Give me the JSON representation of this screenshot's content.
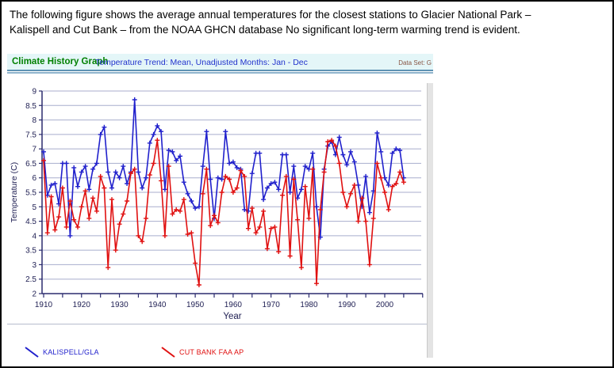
{
  "caption": {
    "line1": "The following figure shows the average annual temperatures for the closest stations to Glacier National Park –",
    "line2": "Kalispell and Cut Bank – from the NOAA GHCN database No significant long-term warming trend is evident."
  },
  "header": {
    "title": "Climate History Graph",
    "subtitle": "Temperature Trend: Mean, Unadjusted Months: Jan - Dec",
    "data_set_label": "Data Set: G"
  },
  "chart_data": {
    "type": "line",
    "title": "",
    "xlabel": "Year",
    "ylabel": "Temperature (C)",
    "xlim": [
      1910,
      2010
    ],
    "ylim": [
      2,
      9
    ],
    "y_tick_step": 0.5,
    "x_tick_labels": [
      1910,
      1920,
      1930,
      1940,
      1950,
      1960,
      1970,
      1980,
      1990,
      2000
    ],
    "x_minor_tick_step": 5,
    "grid": "horizontal",
    "grid_color": "#a8aecd",
    "axis_color": "#2b2b6e",
    "tick_label_color": "#222255",
    "marker": "plus",
    "legend_position": "bottom",
    "x": [
      1910,
      1911,
      1912,
      1913,
      1914,
      1915,
      1916,
      1917,
      1918,
      1919,
      1920,
      1921,
      1922,
      1923,
      1924,
      1925,
      1926,
      1927,
      1928,
      1929,
      1930,
      1931,
      1932,
      1933,
      1934,
      1935,
      1936,
      1937,
      1938,
      1939,
      1940,
      1941,
      1942,
      1943,
      1944,
      1945,
      1946,
      1947,
      1948,
      1949,
      1950,
      1951,
      1952,
      1953,
      1954,
      1955,
      1956,
      1957,
      1958,
      1959,
      1960,
      1961,
      1962,
      1963,
      1964,
      1965,
      1966,
      1967,
      1968,
      1969,
      1970,
      1971,
      1972,
      1973,
      1974,
      1975,
      1976,
      1977,
      1978,
      1979,
      1980,
      1981,
      1982,
      1983,
      1984,
      1985,
      1986,
      1987,
      1988,
      1989,
      1990,
      1991,
      1992,
      1993,
      1994,
      1995,
      1996,
      1997,
      1998,
      1999,
      2000,
      2001,
      2002,
      2003,
      2004,
      2005
    ],
    "series": [
      {
        "name": "KALISPELL/GLA",
        "color": "#2020cc",
        "values": [
          6.9,
          5.4,
          5.75,
          5.8,
          5.1,
          6.5,
          6.5,
          4.0,
          6.35,
          5.7,
          6.2,
          6.4,
          5.6,
          6.3,
          6.5,
          7.5,
          7.75,
          6.2,
          5.65,
          6.2,
          6.0,
          6.4,
          5.8,
          6.2,
          8.7,
          6.2,
          5.65,
          6.0,
          7.2,
          7.5,
          7.8,
          7.6,
          5.6,
          6.95,
          6.9,
          6.6,
          6.75,
          5.85,
          5.45,
          5.2,
          4.95,
          5.0,
          6.4,
          7.6,
          5.95,
          4.6,
          6.0,
          5.95,
          7.6,
          6.5,
          6.55,
          6.35,
          6.3,
          4.9,
          4.85,
          6.15,
          6.85,
          6.85,
          5.25,
          5.65,
          5.8,
          5.85,
          5.6,
          6.8,
          6.8,
          5.5,
          6.4,
          5.3,
          5.6,
          6.4,
          6.3,
          6.85,
          5.0,
          3.95,
          6.3,
          7.1,
          7.25,
          6.8,
          7.4,
          6.8,
          6.45,
          6.9,
          6.55,
          5.75,
          5.0,
          6.05,
          4.8,
          5.55,
          7.55,
          6.9,
          6.0,
          5.75,
          6.85,
          7.0,
          6.95,
          6.0
        ]
      },
      {
        "name": "CUT BANK FAA AP",
        "color": "#e01010",
        "values": [
          6.6,
          4.1,
          5.35,
          4.2,
          4.65,
          5.65,
          4.3,
          5.2,
          4.55,
          4.3,
          5.0,
          5.55,
          4.6,
          5.3,
          4.85,
          6.05,
          5.65,
          2.9,
          5.25,
          3.5,
          4.4,
          4.75,
          5.2,
          6.15,
          6.3,
          4.0,
          3.8,
          4.6,
          6.1,
          6.5,
          7.3,
          5.9,
          4.0,
          6.4,
          4.75,
          4.9,
          4.85,
          5.25,
          4.05,
          4.1,
          3.05,
          2.3,
          5.45,
          6.3,
          4.35,
          4.7,
          4.45,
          5.5,
          6.05,
          5.95,
          5.5,
          5.65,
          6.25,
          6.05,
          4.25,
          4.95,
          4.1,
          4.3,
          4.85,
          3.55,
          4.25,
          4.3,
          3.45,
          5.4,
          6.05,
          3.3,
          5.95,
          4.55,
          2.9,
          5.7,
          4.6,
          6.3,
          2.35,
          4.9,
          6.2,
          7.25,
          7.3,
          7.1,
          6.5,
          5.5,
          5.0,
          5.45,
          5.75,
          4.5,
          5.3,
          4.5,
          3.0,
          4.6,
          6.5,
          6.0,
          5.5,
          4.9,
          5.7,
          5.8,
          6.2,
          5.85
        ]
      }
    ]
  },
  "legend": {
    "items": [
      {
        "label": "KALISPELL/GLA",
        "color": "#2020cc"
      },
      {
        "label": "CUT BANK FAA AP",
        "color": "#e01010"
      }
    ]
  }
}
